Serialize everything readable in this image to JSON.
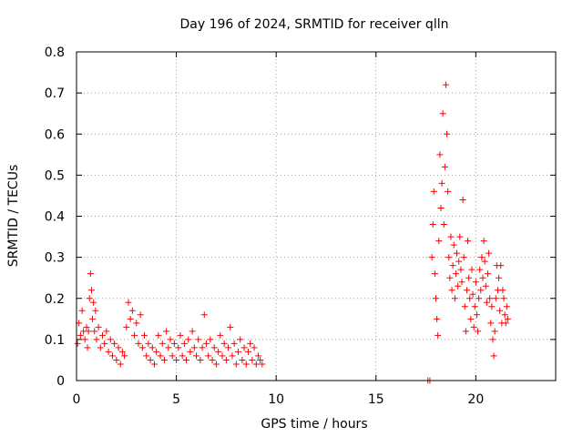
{
  "chart_data": {
    "type": "scatter",
    "title": "Day 196 of 2024, SRMTID for receiver qlln",
    "xlabel": "GPS time / hours",
    "ylabel": "SRMTID / TECUs",
    "xlim": [
      0,
      24
    ],
    "ylim": [
      0,
      0.8
    ],
    "xticks": [
      0,
      5,
      10,
      15,
      20
    ],
    "xtick_labels": [
      "0",
      "5",
      "10",
      "15",
      "20"
    ],
    "yticks": [
      0,
      0.1,
      0.2,
      0.3,
      0.4,
      0.5,
      0.6,
      0.7,
      0.8
    ],
    "ytick_labels": [
      "0",
      "0.1",
      "0.2",
      "0.3",
      "0.4",
      "0.5",
      "0.6",
      "0.7",
      "0.8"
    ],
    "grid": true,
    "marker": "+",
    "color": "#ff0000",
    "series": [
      {
        "name": "SRMTID",
        "points": [
          [
            0.05,
            0.09
          ],
          [
            0.12,
            0.14
          ],
          [
            0.2,
            0.11
          ],
          [
            0.28,
            0.17
          ],
          [
            0.35,
            0.12
          ],
          [
            0.42,
            0.1
          ],
          [
            0.5,
            0.13
          ],
          [
            0.55,
            0.08
          ],
          [
            0.6,
            0.12
          ],
          [
            0.65,
            0.2
          ],
          [
            0.7,
            0.26
          ],
          [
            0.75,
            0.22
          ],
          [
            0.8,
            0.15
          ],
          [
            0.85,
            0.19
          ],
          [
            0.9,
            0.12
          ],
          [
            0.95,
            0.17
          ],
          [
            1.0,
            0.1
          ],
          [
            1.1,
            0.13
          ],
          [
            1.2,
            0.08
          ],
          [
            1.3,
            0.11
          ],
          [
            1.4,
            0.09
          ],
          [
            1.5,
            0.12
          ],
          [
            1.6,
            0.07
          ],
          [
            1.7,
            0.1
          ],
          [
            1.8,
            0.06
          ],
          [
            1.9,
            0.09
          ],
          [
            2.0,
            0.05
          ],
          [
            2.1,
            0.08
          ],
          [
            2.2,
            0.04
          ],
          [
            2.3,
            0.07
          ],
          [
            2.4,
            0.06
          ],
          [
            2.5,
            0.13
          ],
          [
            2.6,
            0.19
          ],
          [
            2.7,
            0.15
          ],
          [
            2.8,
            0.17
          ],
          [
            2.9,
            0.11
          ],
          [
            3.0,
            0.14
          ],
          [
            3.1,
            0.09
          ],
          [
            3.2,
            0.16
          ],
          [
            3.3,
            0.08
          ],
          [
            3.4,
            0.11
          ],
          [
            3.5,
            0.06
          ],
          [
            3.6,
            0.09
          ],
          [
            3.7,
            0.05
          ],
          [
            3.8,
            0.08
          ],
          [
            3.9,
            0.04
          ],
          [
            4.0,
            0.07
          ],
          [
            4.1,
            0.11
          ],
          [
            4.2,
            0.06
          ],
          [
            4.3,
            0.09
          ],
          [
            4.4,
            0.05
          ],
          [
            4.5,
            0.12
          ],
          [
            4.6,
            0.08
          ],
          [
            4.7,
            0.1
          ],
          [
            4.8,
            0.06
          ],
          [
            4.9,
            0.09
          ],
          [
            5.0,
            0.05
          ],
          [
            5.1,
            0.08
          ],
          [
            5.2,
            0.11
          ],
          [
            5.3,
            0.06
          ],
          [
            5.4,
            0.09
          ],
          [
            5.5,
            0.05
          ],
          [
            5.6,
            0.1
          ],
          [
            5.7,
            0.07
          ],
          [
            5.8,
            0.12
          ],
          [
            5.9,
            0.08
          ],
          [
            6.0,
            0.06
          ],
          [
            6.1,
            0.1
          ],
          [
            6.2,
            0.05
          ],
          [
            6.3,
            0.08
          ],
          [
            6.4,
            0.16
          ],
          [
            6.5,
            0.09
          ],
          [
            6.6,
            0.06
          ],
          [
            6.7,
            0.1
          ],
          [
            6.8,
            0.05
          ],
          [
            6.9,
            0.08
          ],
          [
            7.0,
            0.04
          ],
          [
            7.1,
            0.07
          ],
          [
            7.2,
            0.11
          ],
          [
            7.3,
            0.06
          ],
          [
            7.4,
            0.09
          ],
          [
            7.5,
            0.05
          ],
          [
            7.6,
            0.08
          ],
          [
            7.7,
            0.13
          ],
          [
            7.8,
            0.06
          ],
          [
            7.9,
            0.09
          ],
          [
            8.0,
            0.04
          ],
          [
            8.1,
            0.07
          ],
          [
            8.2,
            0.1
          ],
          [
            8.3,
            0.05
          ],
          [
            8.4,
            0.08
          ],
          [
            8.5,
            0.04
          ],
          [
            8.6,
            0.07
          ],
          [
            8.7,
            0.09
          ],
          [
            8.8,
            0.05
          ],
          [
            8.9,
            0.08
          ],
          [
            9.0,
            0.04
          ],
          [
            9.1,
            0.06
          ],
          [
            9.2,
            0.05
          ],
          [
            9.3,
            0.04
          ],
          [
            17.6,
            0.0
          ],
          [
            17.7,
            0.0
          ],
          [
            17.8,
            0.3
          ],
          [
            17.85,
            0.38
          ],
          [
            17.9,
            0.46
          ],
          [
            17.95,
            0.26
          ],
          [
            18.0,
            0.2
          ],
          [
            18.05,
            0.15
          ],
          [
            18.1,
            0.11
          ],
          [
            18.15,
            0.34
          ],
          [
            18.2,
            0.55
          ],
          [
            18.25,
            0.42
          ],
          [
            18.3,
            0.48
          ],
          [
            18.35,
            0.65
          ],
          [
            18.4,
            0.38
          ],
          [
            18.45,
            0.52
          ],
          [
            18.5,
            0.72
          ],
          [
            18.55,
            0.6
          ],
          [
            18.6,
            0.46
          ],
          [
            18.65,
            0.3
          ],
          [
            18.7,
            0.25
          ],
          [
            18.75,
            0.35
          ],
          [
            18.8,
            0.22
          ],
          [
            18.85,
            0.28
          ],
          [
            18.9,
            0.33
          ],
          [
            18.95,
            0.2
          ],
          [
            19.0,
            0.26
          ],
          [
            19.05,
            0.31
          ],
          [
            19.1,
            0.23
          ],
          [
            19.15,
            0.29
          ],
          [
            19.2,
            0.35
          ],
          [
            19.25,
            0.27
          ],
          [
            19.3,
            0.24
          ],
          [
            19.35,
            0.44
          ],
          [
            19.4,
            0.3
          ],
          [
            19.45,
            0.18
          ],
          [
            19.5,
            0.12
          ],
          [
            19.55,
            0.22
          ],
          [
            19.6,
            0.34
          ],
          [
            19.65,
            0.25
          ],
          [
            19.7,
            0.2
          ],
          [
            19.75,
            0.15
          ],
          [
            19.8,
            0.27
          ],
          [
            19.85,
            0.21
          ],
          [
            19.9,
            0.13
          ],
          [
            19.95,
            0.18
          ],
          [
            20.0,
            0.24
          ],
          [
            20.05,
            0.16
          ],
          [
            20.1,
            0.12
          ],
          [
            20.15,
            0.2
          ],
          [
            20.2,
            0.27
          ],
          [
            20.25,
            0.22
          ],
          [
            20.3,
            0.3
          ],
          [
            20.35,
            0.25
          ],
          [
            20.4,
            0.34
          ],
          [
            20.45,
            0.29
          ],
          [
            20.5,
            0.23
          ],
          [
            20.55,
            0.19
          ],
          [
            20.6,
            0.26
          ],
          [
            20.65,
            0.31
          ],
          [
            20.7,
            0.2
          ],
          [
            20.75,
            0.14
          ],
          [
            20.8,
            0.18
          ],
          [
            20.85,
            0.1
          ],
          [
            20.9,
            0.06
          ],
          [
            20.95,
            0.12
          ],
          [
            21.0,
            0.2
          ],
          [
            21.05,
            0.28
          ],
          [
            21.1,
            0.22
          ],
          [
            21.15,
            0.25
          ],
          [
            21.2,
            0.17
          ],
          [
            21.25,
            0.28
          ],
          [
            21.3,
            0.14
          ],
          [
            21.35,
            0.22
          ],
          [
            21.4,
            0.2
          ],
          [
            21.45,
            0.16
          ],
          [
            21.5,
            0.14
          ],
          [
            21.55,
            0.18
          ],
          [
            21.6,
            0.15
          ]
        ]
      }
    ]
  }
}
